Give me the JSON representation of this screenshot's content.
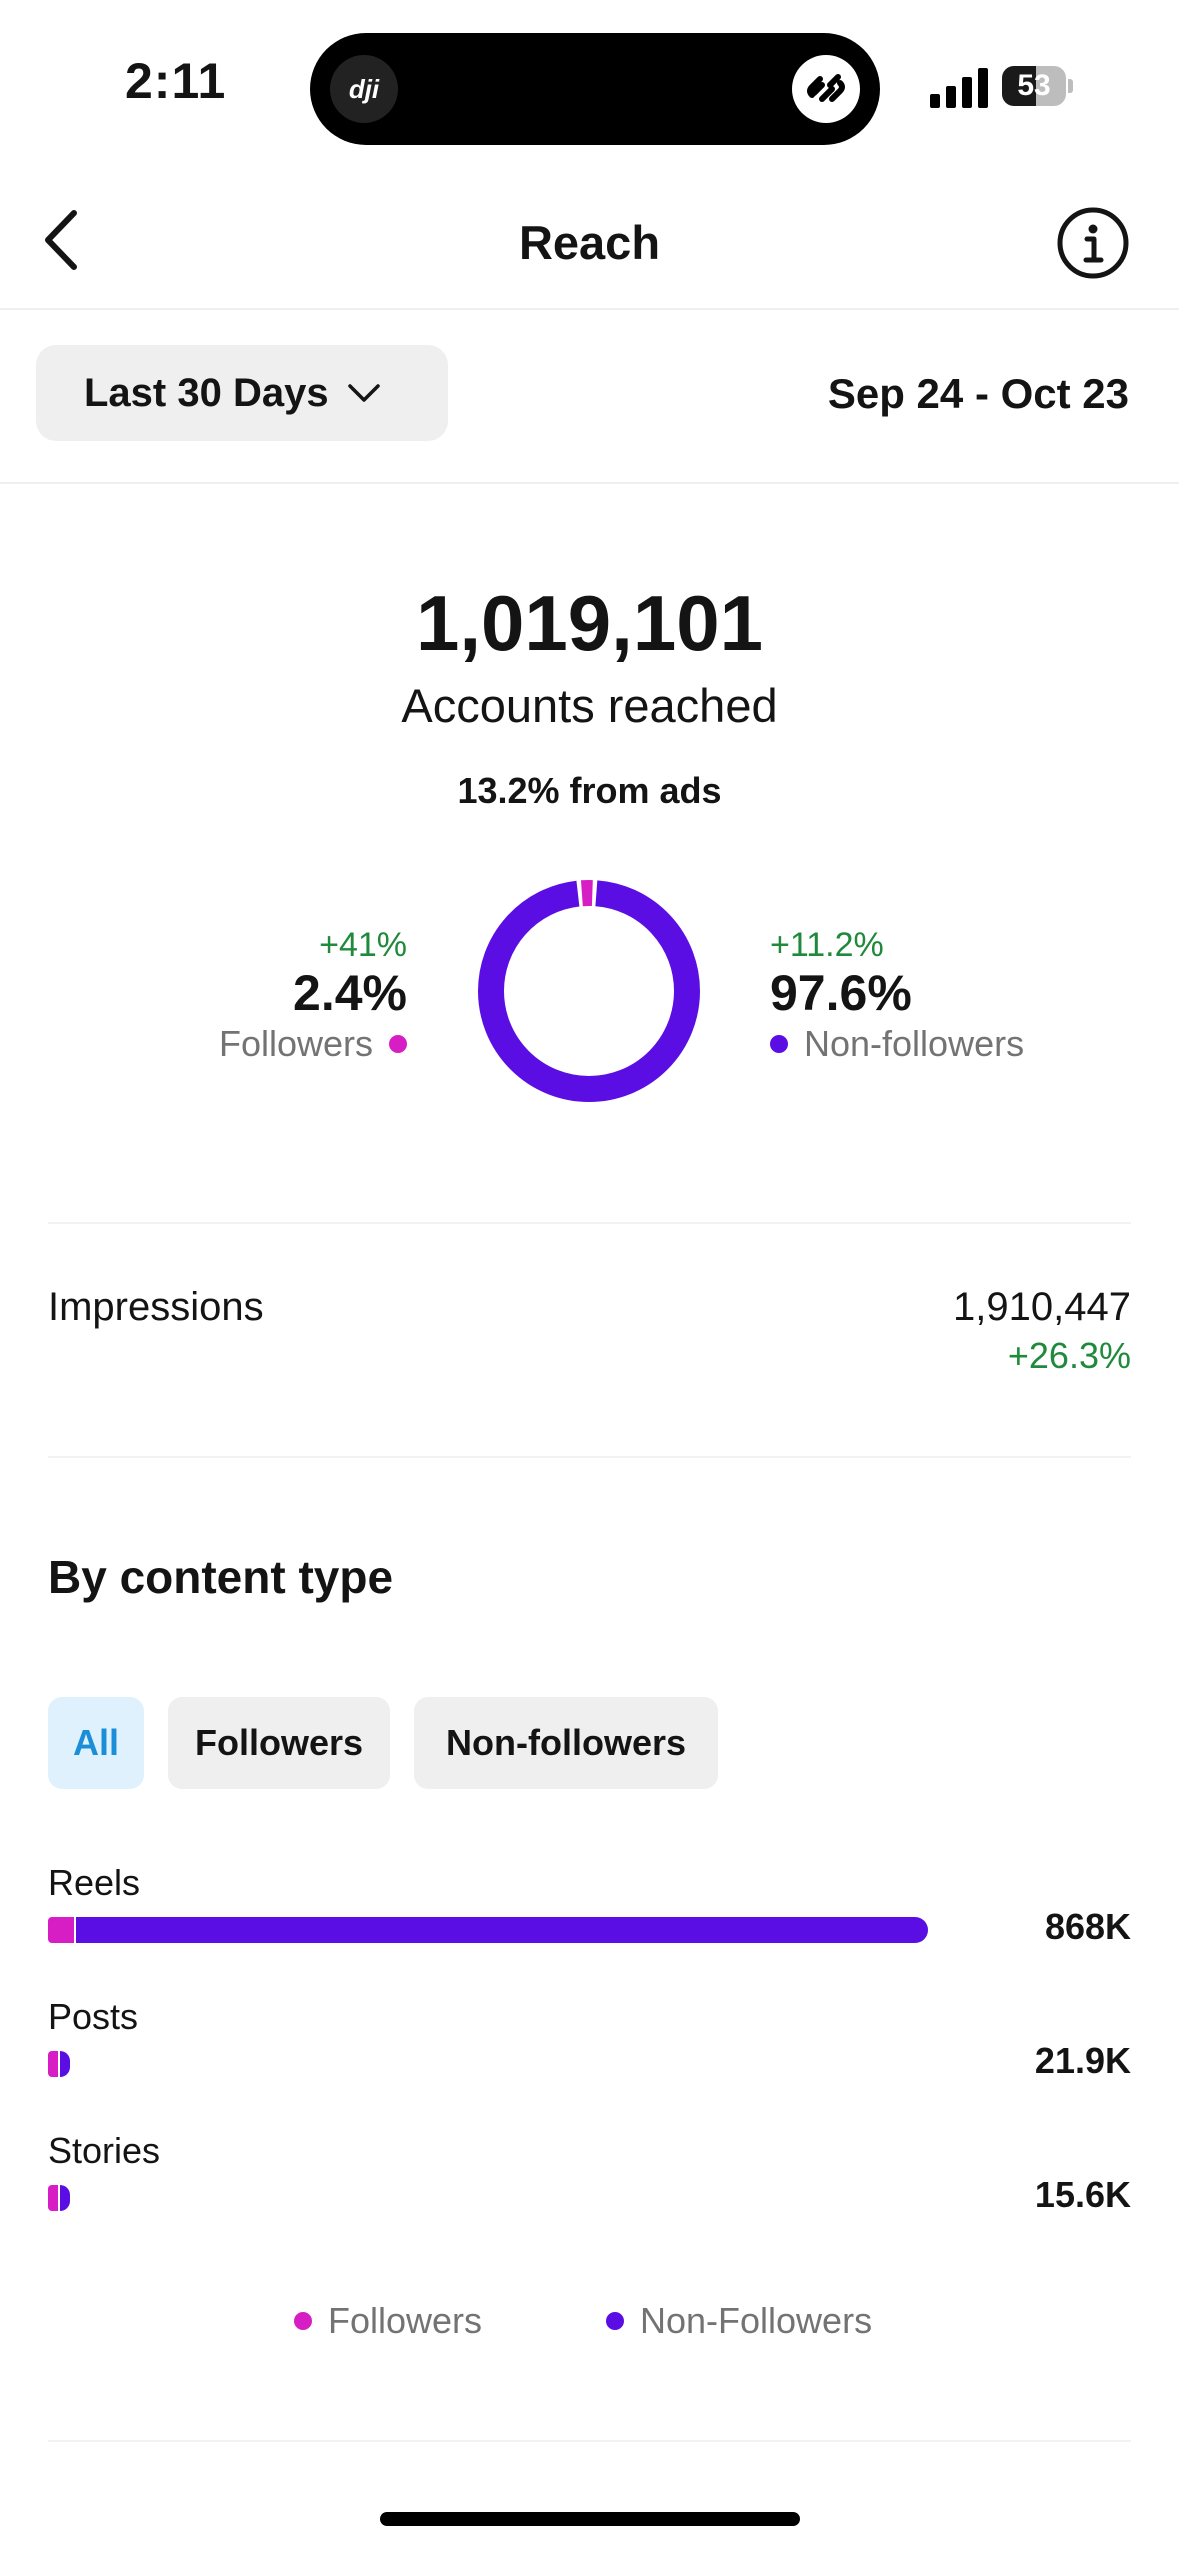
{
  "status_bar": {
    "time": "2:11",
    "island_app": "dji",
    "battery": "53",
    "battery_level": 0.53
  },
  "nav": {
    "title": "Reach",
    "back_icon": "chevron-left-icon",
    "info_icon": "info-icon"
  },
  "filter": {
    "range_label": "Last 30 Days",
    "date_range": "Sep 24 - Oct 23"
  },
  "summary": {
    "accounts_reached": "1,019,101",
    "accounts_label": "Accounts reached",
    "ads_label": "13.2% from ads",
    "followers": {
      "change": "+41%",
      "value": "2.4%",
      "label": "Followers",
      "fraction": 0.024
    },
    "non_followers": {
      "change": "+11.2%",
      "value": "97.6%",
      "label": "Non-followers",
      "fraction": 0.976
    }
  },
  "impressions": {
    "label": "Impressions",
    "value": "1,910,447",
    "change": "+26.3%"
  },
  "content_type": {
    "title": "By content type",
    "chips": [
      {
        "label": "All",
        "active": true
      },
      {
        "label": "Followers",
        "active": false
      },
      {
        "label": "Non-followers",
        "active": false
      }
    ],
    "rows": [
      {
        "label": "Reels",
        "value": "868K",
        "amount": 868000,
        "follower_share": 0.03
      },
      {
        "label": "Posts",
        "value": "21.9K",
        "amount": 21900,
        "follower_share": 0.45
      },
      {
        "label": "Stories",
        "value": "15.6K",
        "amount": 15600,
        "follower_share": 0.45
      }
    ],
    "legend": {
      "followers": "Followers",
      "non_followers": "Non-Followers"
    }
  },
  "colors": {
    "followers": "#d61ec4",
    "non_followers": "#5b0ee3",
    "positive_change": "#1f8a3b",
    "active_chip_text": "#1a8fd8"
  }
}
